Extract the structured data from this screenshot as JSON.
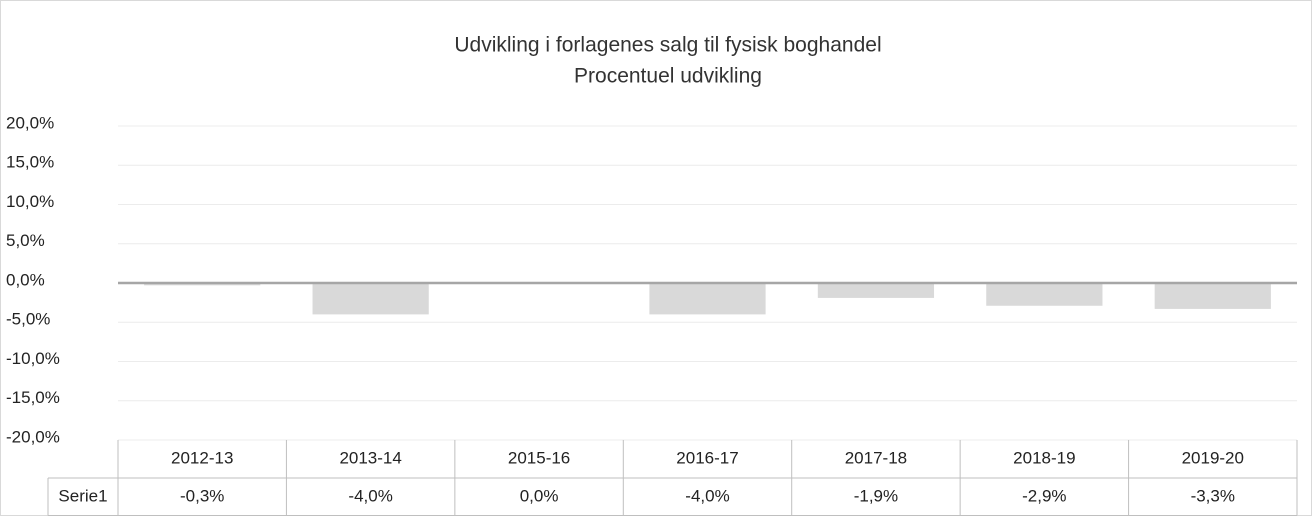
{
  "chart_data": {
    "type": "bar",
    "title": "Udvikling i forlagenes salg til fysisk boghandel",
    "subtitle": "Procentuel udvikling",
    "categories": [
      "2012-13",
      "2013-14",
      "2015-16",
      "2016-17",
      "2017-18",
      "2018-19",
      "2019-20"
    ],
    "series": [
      {
        "name": "Serie1",
        "color": "#d9d9d9",
        "values": [
          -0.3,
          -4.0,
          0.0,
          -4.0,
          -1.9,
          -2.9,
          -3.3
        ],
        "value_labels": [
          "-0,3%",
          "-4,0%",
          "0,0%",
          "-4,0%",
          "-1,9%",
          "-2,9%",
          "-3,3%"
        ]
      }
    ],
    "ylim": [
      -20,
      20
    ],
    "yticks": [
      {
        "value": -20,
        "label": "-20,0%"
      },
      {
        "value": -15,
        "label": "-15,0%"
      },
      {
        "value": -10,
        "label": "-10,0%"
      },
      {
        "value": -5,
        "label": "-5,0%"
      },
      {
        "value": 0,
        "label": "0,0%"
      },
      {
        "value": 5,
        "label": "5,0%"
      },
      {
        "value": 10,
        "label": "10,0%"
      },
      {
        "value": 15,
        "label": "15,0%"
      },
      {
        "value": 20,
        "label": "20,0%"
      }
    ],
    "grid": true
  }
}
